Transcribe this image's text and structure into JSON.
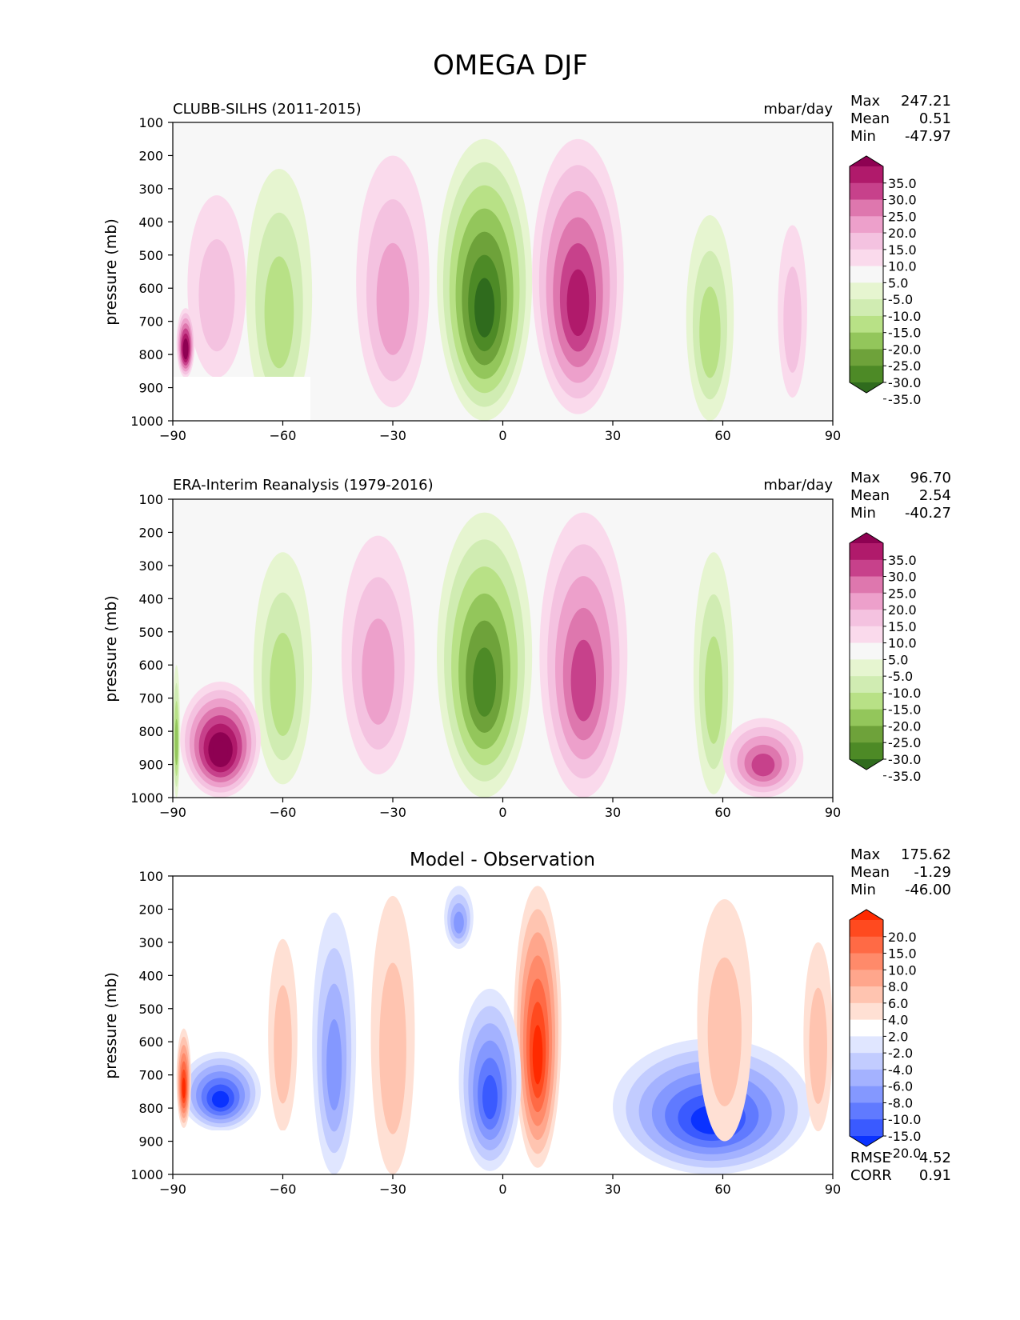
{
  "figure_title": "OMEGA DJF",
  "chart_data": [
    {
      "type": "heatmap",
      "title": "CLUBB-SILHS (2011-2015)",
      "units": "mbar/day",
      "xlabel": "",
      "ylabel": "pressure (mb)",
      "xlim": [
        -90,
        90
      ],
      "ylim": [
        1000,
        100
      ],
      "xticks": [
        "−90",
        "−60",
        "−30",
        "0",
        "30",
        "60",
        "90"
      ],
      "yticks": [
        "100",
        "200",
        "300",
        "400",
        "500",
        "600",
        "700",
        "800",
        "900",
        "1000"
      ],
      "stats": [
        {
          "label": "Max",
          "value": "247.21"
        },
        {
          "label": "Mean",
          "value": "0.51"
        },
        {
          "label": "Min",
          "value": "-47.97"
        }
      ],
      "colorbar": {
        "levels": [
          "35.0",
          "30.0",
          "25.0",
          "20.0",
          "15.0",
          "10.0",
          "5.0",
          "-5.0",
          "-10.0",
          "-15.0",
          "-20.0",
          "-25.0",
          "-30.0",
          "-35.0"
        ],
        "colors": [
          "#8e0152",
          "#b01a6b",
          "#c7418b",
          "#de77ae",
          "#eda0cb",
          "#f4c2e0",
          "#fadaec",
          "#f7f7f7",
          "#e6f5d0",
          "#d0ecb2",
          "#b8e186",
          "#93c65b",
          "#6ea23a",
          "#4d8a26",
          "#2f6b1d"
        ]
      },
      "features": [
        {
          "kind": "green",
          "lat_range": [
            -18,
            8
          ],
          "lev_range": [
            150,
            1000
          ],
          "peak": -35
        },
        {
          "kind": "pink",
          "lat_range": [
            8,
            33
          ],
          "lev_range": [
            150,
            980
          ],
          "peak": 30
        },
        {
          "kind": "pink",
          "lat_range": [
            -40,
            -20
          ],
          "lev_range": [
            200,
            960
          ],
          "peak": 15
        },
        {
          "kind": "green",
          "lat_range": [
            -70,
            -52
          ],
          "lev_range": [
            240,
            1000
          ],
          "peak": -15
        },
        {
          "kind": "pink",
          "lat_range": [
            -86,
            -70
          ],
          "lev_range": [
            320,
            870
          ],
          "peak": 10
        },
        {
          "kind": "green",
          "lat_range": [
            50,
            63
          ],
          "lev_range": [
            380,
            1000
          ],
          "peak": -15
        },
        {
          "kind": "pink",
          "lat_range": [
            75,
            83
          ],
          "lev_range": [
            410,
            930
          ],
          "peak": 10
        },
        {
          "kind": "darkpink",
          "lat_range": [
            -89,
            -84
          ],
          "lev_range": [
            660,
            870
          ],
          "peak": 40
        }
      ]
    },
    {
      "type": "heatmap",
      "title": "ERA-Interim Reanalysis (1979-2016)",
      "units": "mbar/day",
      "xlabel": "",
      "ylabel": "pressure (mb)",
      "xlim": [
        -90,
        90
      ],
      "ylim": [
        1000,
        100
      ],
      "xticks": [
        "−90",
        "−60",
        "−30",
        "0",
        "30",
        "60",
        "90"
      ],
      "yticks": [
        "100",
        "200",
        "300",
        "400",
        "500",
        "600",
        "700",
        "800",
        "900",
        "1000"
      ],
      "stats": [
        {
          "label": "Max",
          "value": "96.70"
        },
        {
          "label": "Mean",
          "value": "2.54"
        },
        {
          "label": "Min",
          "value": "-40.27"
        }
      ],
      "colorbar": {
        "levels": [
          "35.0",
          "30.0",
          "25.0",
          "20.0",
          "15.0",
          "10.0",
          "5.0",
          "-5.0",
          "-10.0",
          "-15.0",
          "-20.0",
          "-25.0",
          "-30.0",
          "-35.0"
        ],
        "colors": [
          "#8e0152",
          "#b01a6b",
          "#c7418b",
          "#de77ae",
          "#eda0cb",
          "#f4c2e0",
          "#fadaec",
          "#f7f7f7",
          "#e6f5d0",
          "#d0ecb2",
          "#b8e186",
          "#93c65b",
          "#6ea23a",
          "#4d8a26",
          "#2f6b1d"
        ]
      },
      "features": [
        {
          "kind": "green",
          "lat_range": [
            -18,
            8
          ],
          "lev_range": [
            140,
            1000
          ],
          "peak": -30
        },
        {
          "kind": "pink",
          "lat_range": [
            10,
            34
          ],
          "lev_range": [
            140,
            1000
          ],
          "peak": 25
        },
        {
          "kind": "pink",
          "lat_range": [
            -44,
            -24
          ],
          "lev_range": [
            210,
            930
          ],
          "peak": 15
        },
        {
          "kind": "green",
          "lat_range": [
            -68,
            -52
          ],
          "lev_range": [
            260,
            960
          ],
          "peak": -15
        },
        {
          "kind": "darkpink",
          "lat_range": [
            -88,
            -66
          ],
          "lev_range": [
            650,
            1000
          ],
          "peak": 40
        },
        {
          "kind": "green",
          "lat_range": [
            52,
            63
          ],
          "lev_range": [
            260,
            990
          ],
          "peak": -15
        },
        {
          "kind": "pink",
          "lat_range": [
            60,
            82
          ],
          "lev_range": [
            760,
            1000
          ],
          "peak": 25
        },
        {
          "kind": "green",
          "lat_range": [
            -90,
            -88
          ],
          "lev_range": [
            600,
            1000
          ],
          "peak": -20
        }
      ]
    },
    {
      "type": "heatmap",
      "title": "Model - Observation",
      "units": "",
      "xlabel": "",
      "ylabel": "pressure (mb)",
      "xlim": [
        -90,
        90
      ],
      "ylim": [
        1000,
        100
      ],
      "xticks": [
        "−90",
        "−60",
        "−30",
        "0",
        "30",
        "60",
        "90"
      ],
      "yticks": [
        "100",
        "200",
        "300",
        "400",
        "500",
        "600",
        "700",
        "800",
        "900",
        "1000"
      ],
      "stats": [
        {
          "label": "Max",
          "value": "175.62"
        },
        {
          "label": "Mean",
          "value": "-1.29"
        },
        {
          "label": "Min",
          "value": "-46.00"
        }
      ],
      "extra_stats": [
        {
          "label": "RMSE",
          "value": "4.52"
        },
        {
          "label": "CORR",
          "value": "0.91"
        }
      ],
      "colorbar": {
        "levels": [
          "20.0",
          "15.0",
          "10.0",
          "8.0",
          "6.0",
          "4.0",
          "2.0",
          "-2.0",
          "-4.0",
          "-6.0",
          "-8.0",
          "-10.0",
          "-15.0",
          "-20.0"
        ],
        "colors": [
          "#ff2a00",
          "#ff4a1f",
          "#ff6a45",
          "#ff8a6a",
          "#ffa68c",
          "#ffc4b0",
          "#ffe0d4",
          "#ffffff",
          "#e0e6ff",
          "#c2ccff",
          "#a4b2ff",
          "#8498ff",
          "#607aff",
          "#3a5aff",
          "#0a32ff"
        ]
      },
      "features": [
        {
          "kind": "red",
          "lat_range": [
            3,
            16
          ],
          "lev_range": [
            130,
            980
          ],
          "peak": 20
        },
        {
          "kind": "blue",
          "lat_range": [
            -12,
            5
          ],
          "lev_range": [
            440,
            990
          ],
          "peak": -15
        },
        {
          "kind": "blue",
          "lat_range": [
            30,
            84
          ],
          "lev_range": [
            590,
            1000
          ],
          "peak": -20
        },
        {
          "kind": "blue",
          "lat_range": [
            -88,
            -66
          ],
          "lev_range": [
            630,
            870
          ],
          "peak": -20
        },
        {
          "kind": "blue",
          "lat_range": [
            -52,
            -40
          ],
          "lev_range": [
            210,
            1000
          ],
          "peak": -8
        },
        {
          "kind": "blue",
          "lat_range": [
            -16,
            -8
          ],
          "lev_range": [
            130,
            320
          ],
          "peak": -8
        },
        {
          "kind": "red",
          "lat_range": [
            -36,
            -24
          ],
          "lev_range": [
            160,
            1000
          ],
          "peak": 4
        },
        {
          "kind": "red",
          "lat_range": [
            53,
            68
          ],
          "lev_range": [
            170,
            900
          ],
          "peak": 4
        },
        {
          "kind": "red",
          "lat_range": [
            -64,
            -56
          ],
          "lev_range": [
            290,
            870
          ],
          "peak": 4
        },
        {
          "kind": "red",
          "lat_range": [
            -89,
            -85
          ],
          "lev_range": [
            560,
            860
          ],
          "peak": 20
        },
        {
          "kind": "red",
          "lat_range": [
            82,
            90
          ],
          "lev_range": [
            300,
            870
          ],
          "peak": 4
        }
      ]
    }
  ]
}
